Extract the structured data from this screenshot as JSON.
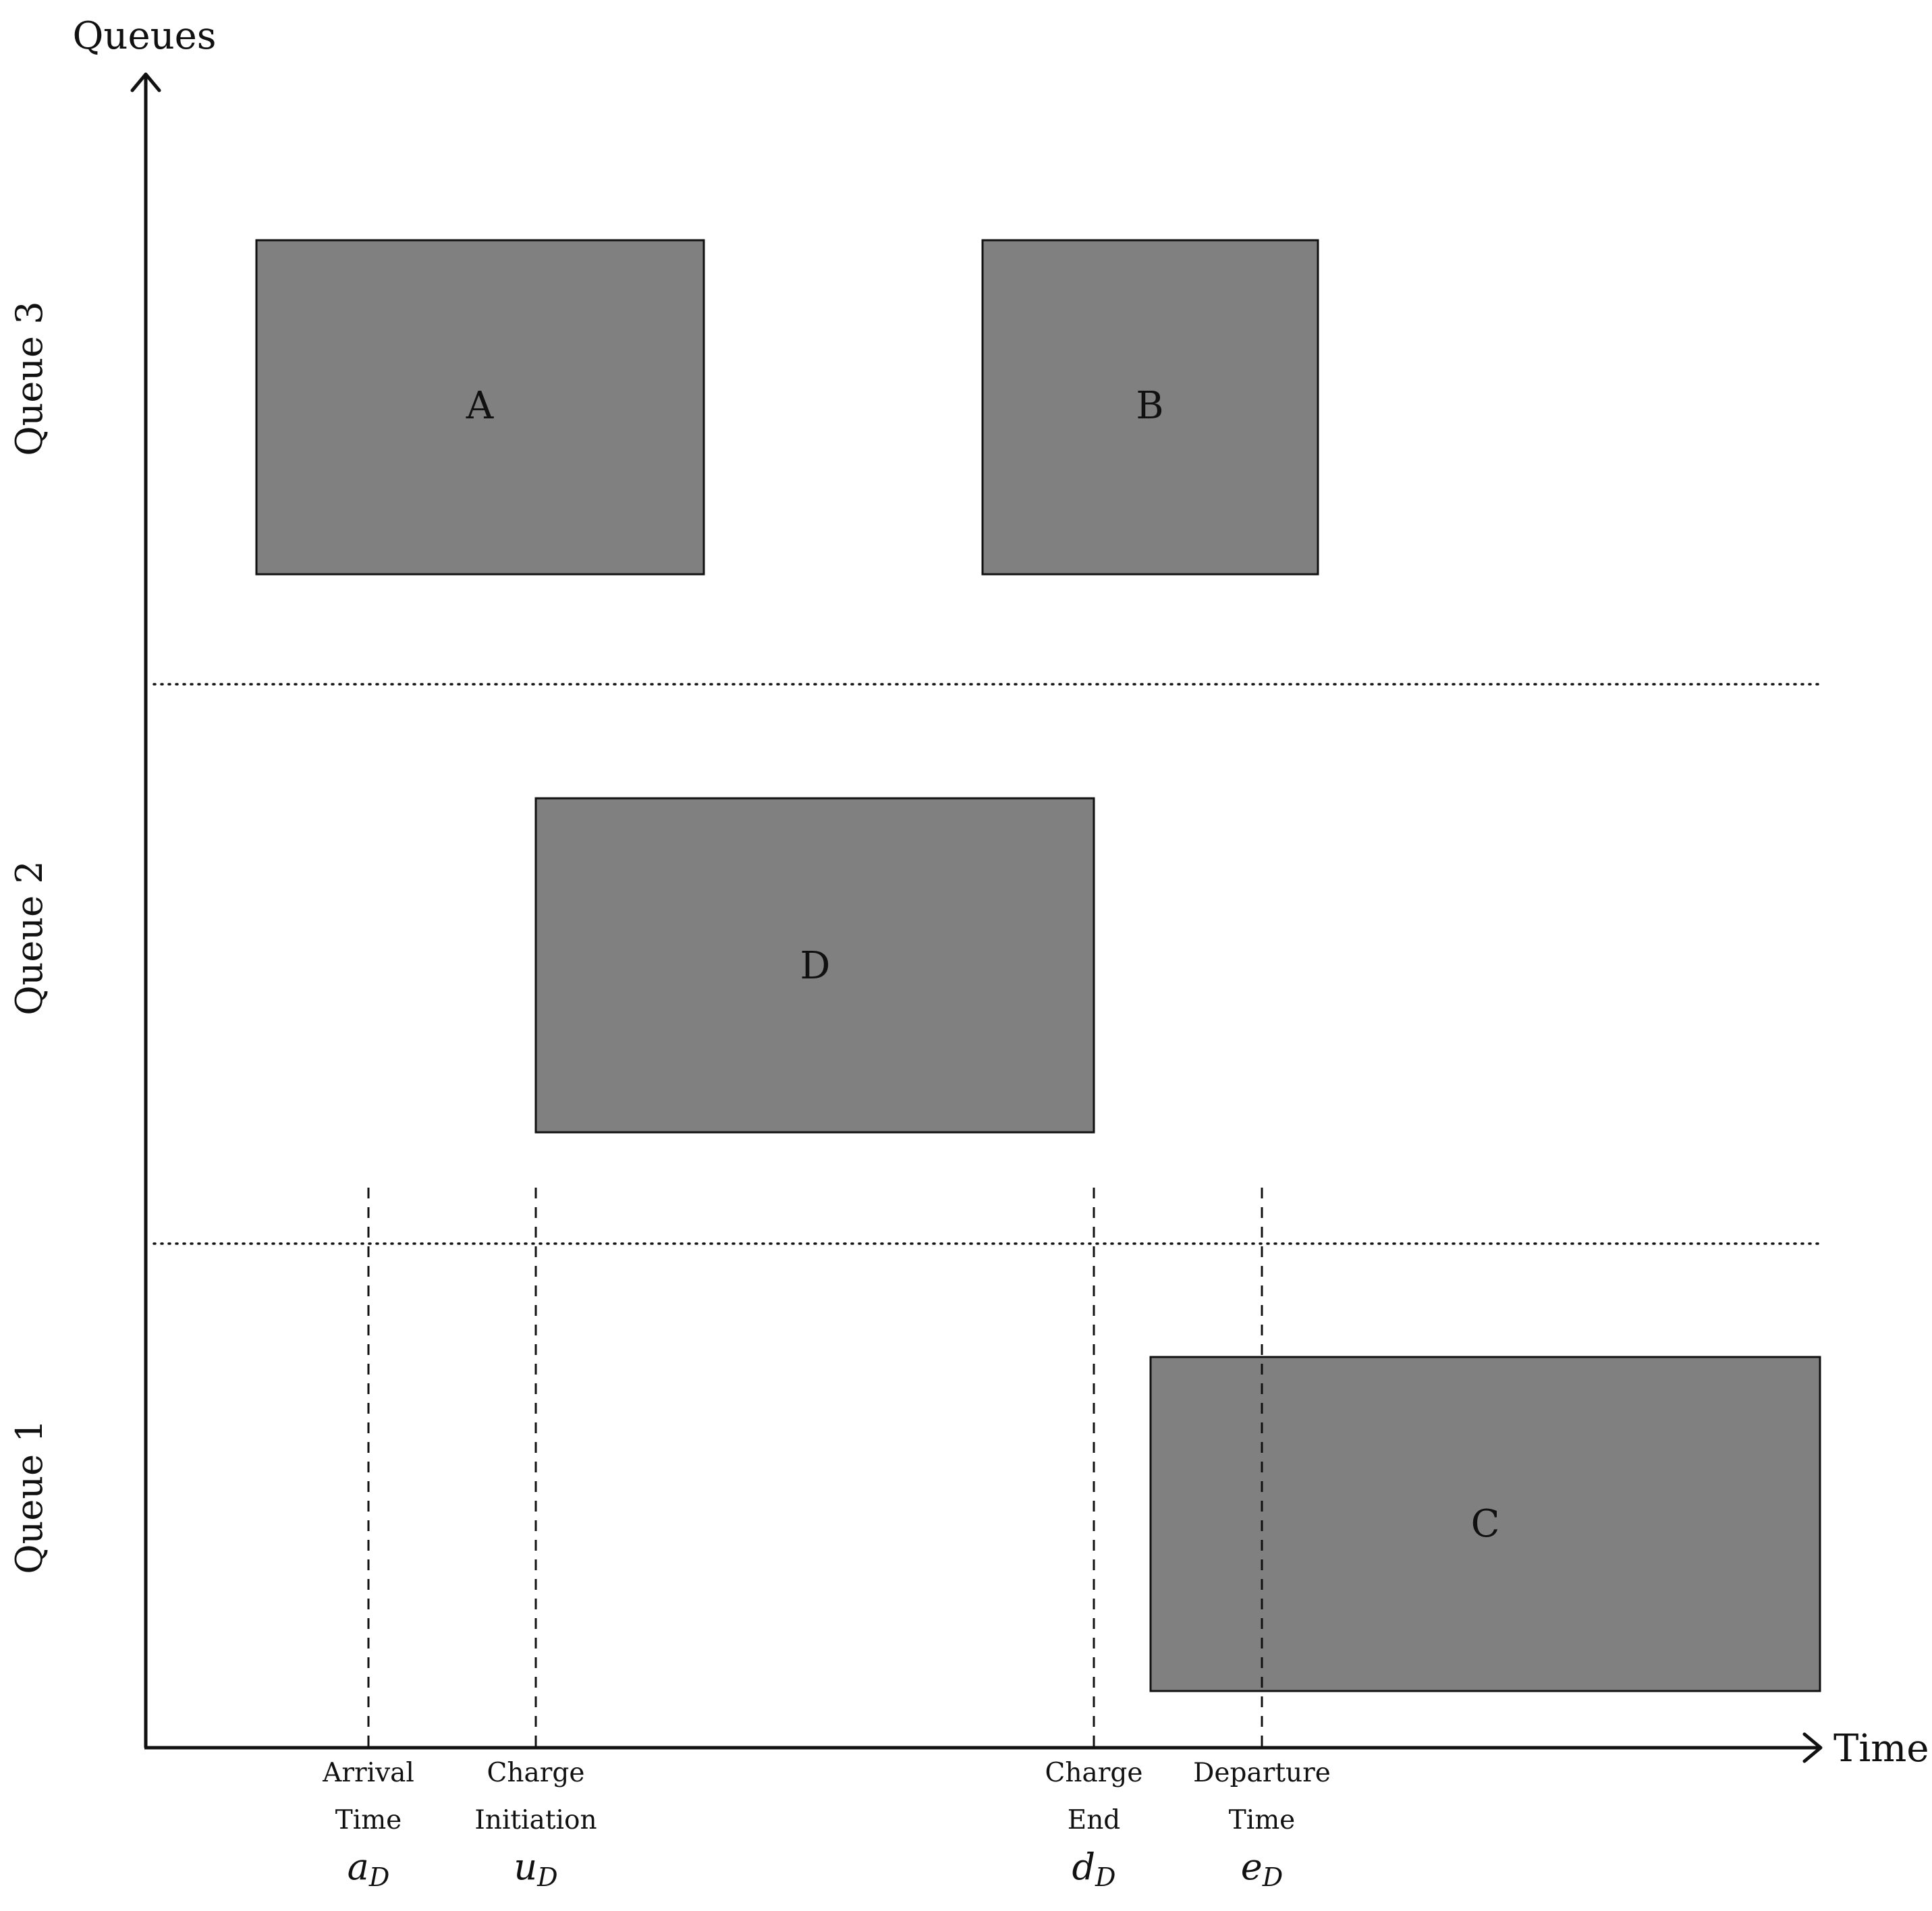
{
  "axes": {
    "y_label": "Queues",
    "x_label": "Time"
  },
  "queues": [
    {
      "label": "Queue 3"
    },
    {
      "label": "Queue 2"
    },
    {
      "label": "Queue 1"
    }
  ],
  "blocks": [
    {
      "label": "A",
      "queue": "Queue 3"
    },
    {
      "label": "B",
      "queue": "Queue 3"
    },
    {
      "label": "D",
      "queue": "Queue 2"
    },
    {
      "label": "C",
      "queue": "Queue 1"
    }
  ],
  "time_markers": [
    {
      "line1": "Arrival",
      "line2": "Time",
      "symbol": "a",
      "subscript": "D"
    },
    {
      "line1": "Charge",
      "line2": "Initiation",
      "symbol": "u",
      "subscript": "D"
    },
    {
      "line1": "Charge",
      "line2": "End",
      "symbol": "d",
      "subscript": "D"
    },
    {
      "line1": "Departure",
      "line2": "Time",
      "symbol": "e",
      "subscript": "D"
    }
  ],
  "colors": {
    "block_fill": "#808080",
    "stroke": "#111111",
    "background": "#ffffff"
  }
}
